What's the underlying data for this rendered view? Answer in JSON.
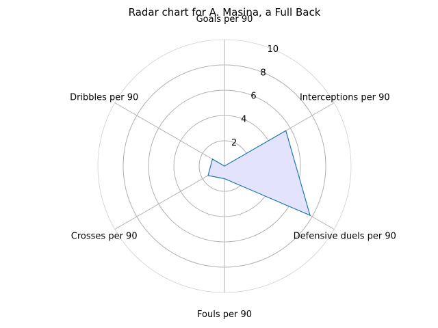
{
  "chart_data": {
    "type": "radar",
    "title": "Radar chart for A. Masina, a Full Back",
    "axes": [
      "Goals per 90",
      "Interceptions per 90",
      "Defensive duels per 90",
      "Fouls per 90",
      "Crosses per 90",
      "Dribbles per 90"
    ],
    "radial_ticks": [
      2,
      4,
      6,
      8,
      10
    ],
    "rlim": [
      0,
      10
    ],
    "grid": true,
    "series": [
      {
        "values": [
          0.0,
          5.6,
          7.8,
          1.0,
          1.5,
          1.1
        ],
        "line_color": "#1f77b4",
        "fill_color": "#e3e3fb"
      }
    ]
  }
}
